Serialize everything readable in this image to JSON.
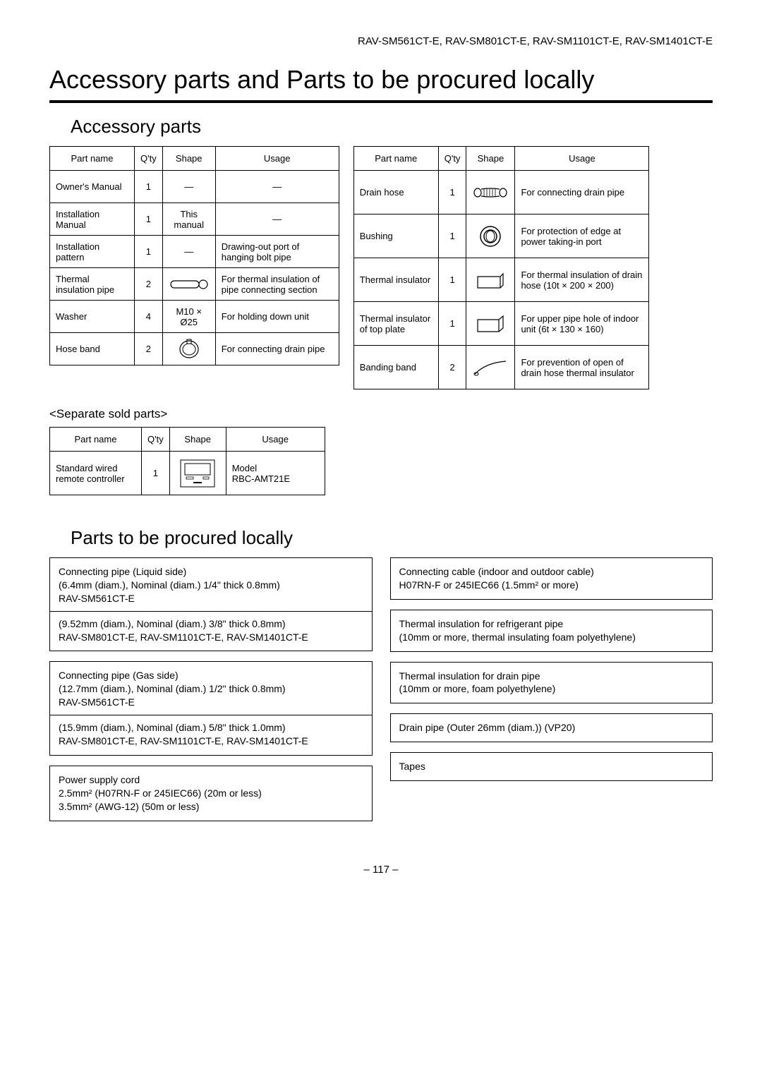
{
  "header_models": "RAV-SM561CT-E, RAV-SM801CT-E, RAV-SM1101CT-E, RAV-SM1401CT-E",
  "main_title": "Accessory parts and Parts to be procured locally",
  "section_accessory": "Accessory parts",
  "section_local": "Parts to be procured locally",
  "sub_separate": "<Separate sold parts>",
  "table_headers": {
    "part": "Part name",
    "qty": "Q'ty",
    "shape": "Shape",
    "usage": "Usage"
  },
  "accessory_left": [
    {
      "part": "Owner's Manual",
      "qty": "1",
      "shape_text": "—",
      "usage": "—"
    },
    {
      "part": "Installation Manual",
      "qty": "1",
      "shape_text": "This manual",
      "usage": "—"
    },
    {
      "part": "Installation pattern",
      "qty": "1",
      "shape_text": "—",
      "usage": "Drawing-out port of hanging bolt pipe"
    },
    {
      "part": "Thermal insulation pipe",
      "qty": "2",
      "shape_icon": "tube",
      "usage": "For thermal insulation of pipe connecting section"
    },
    {
      "part": "Washer",
      "qty": "4",
      "shape_text": "M10 × Ø25",
      "usage": "For holding down unit"
    },
    {
      "part": "Hose band",
      "qty": "2",
      "shape_icon": "hoseband",
      "usage": "For connecting drain pipe"
    }
  ],
  "accessory_right": [
    {
      "part": "Drain hose",
      "qty": "1",
      "shape_icon": "drainhose",
      "usage": "For connecting drain pipe"
    },
    {
      "part": "Bushing",
      "qty": "1",
      "shape_icon": "bushing",
      "usage": "For protection of edge at power taking-in port"
    },
    {
      "part": "Thermal insulator",
      "qty": "1",
      "shape_icon": "rect",
      "usage": "For thermal insulation of drain hose (10t × 200 × 200)"
    },
    {
      "part": "Thermal insulator of top plate",
      "qty": "1",
      "shape_icon": "rect2",
      "usage": "For upper pipe hole of indoor unit (6t × 130 × 160)"
    },
    {
      "part": "Banding band",
      "qty": "2",
      "shape_icon": "band",
      "usage": "For prevention of open of drain hose thermal insulator"
    }
  ],
  "separate": [
    {
      "part": "Standard wired remote controller",
      "qty": "1",
      "shape_icon": "remote",
      "usage": "Model\nRBC-AMT21E"
    }
  ],
  "local_left": [
    {
      "lines": [
        "Connecting pipe (Liquid side)",
        "(6.4mm (diam.), Nominal (diam.) 1/4\" thick 0.8mm)",
        "RAV-SM561CT-E"
      ],
      "sep": true,
      "lines2": [
        "(9.52mm (diam.), Nominal (diam.) 3/8\" thick 0.8mm)",
        "RAV-SM801CT-E, RAV-SM1101CT-E, RAV-SM1401CT-E"
      ]
    },
    {
      "lines": [
        "Connecting pipe (Gas side)",
        "(12.7mm (diam.), Nominal (diam.) 1/2\" thick 0.8mm)",
        "RAV-SM561CT-E"
      ],
      "sep": true,
      "lines2": [
        "(15.9mm (diam.), Nominal (diam.) 5/8\" thick 1.0mm)",
        "RAV-SM801CT-E, RAV-SM1101CT-E, RAV-SM1401CT-E"
      ]
    },
    {
      "lines": [
        "Power supply cord",
        "2.5mm² (H07RN-F or 245IEC66) (20m or less)",
        "3.5mm² (AWG-12) (50m or less)"
      ]
    }
  ],
  "local_right": [
    {
      "lines": [
        "Connecting cable (indoor and outdoor cable)",
        "H07RN-F or 245IEC66 (1.5mm² or more)"
      ]
    },
    {
      "lines": [
        "Thermal insulation for refrigerant pipe",
        "(10mm or more, thermal insulating foam polyethylene)"
      ]
    },
    {
      "lines": [
        "Thermal insulation for drain pipe",
        "(10mm or more, foam polyethylene)"
      ]
    },
    {
      "lines": [
        "Drain pipe (Outer 26mm (diam.)) (VP20)"
      ]
    },
    {
      "lines": [
        "Tapes"
      ]
    }
  ],
  "page_number": "– 117 –"
}
